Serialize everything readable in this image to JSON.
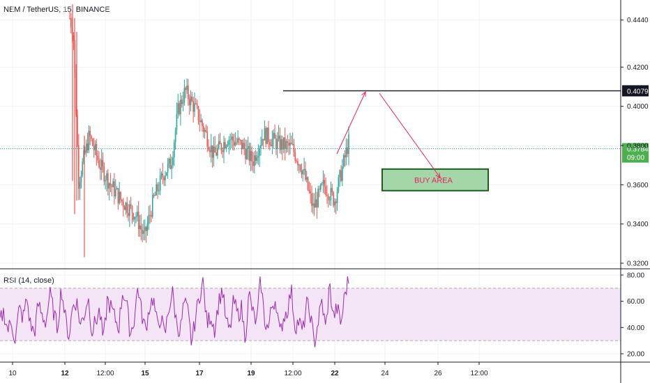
{
  "header": {
    "symbol_label": "NEM / TetherUS, 15, BINANCE"
  },
  "rsi_label": "RSI (14, close)",
  "annotation": {
    "buy_area": "BUY AREA"
  },
  "price_badges": {
    "resistance": "0.4079",
    "last": "0.3784",
    "countdown": "09:00"
  },
  "colors": {
    "up": "#26a69a",
    "down": "#ef5350",
    "rsi": "#9c27b0",
    "rsi_band": "#f3e5f5",
    "buy_fill": "#a5d6a7",
    "buy_border": "#1b5e20",
    "arrow": "#e91e63",
    "badge_dark": "#131722",
    "badge_green": "#4caf50"
  },
  "chart_data": [
    {
      "type": "candlestick",
      "title": "NEM / TetherUS, 15, BINANCE",
      "y_ticks": [
        "0.4440",
        "0.4200",
        "0.4000",
        "0.3800",
        "0.3600",
        "0.3400",
        "0.3200"
      ],
      "ylim": [
        0.318,
        0.452
      ],
      "x_ticks": [
        "10",
        "12",
        "12:00",
        "15",
        "17",
        "19",
        "12:00",
        "22",
        "24",
        "26",
        "12:00"
      ],
      "bold_x_ticks": [
        "12",
        "15",
        "17",
        "19",
        "22"
      ],
      "resistance_line": 0.4079,
      "last_price": 0.3784,
      "buy_area": {
        "label": "BUY AREA",
        "low": 0.357,
        "high": 0.368
      },
      "close_path": [
        {
          "x": 0,
          "y": 0.0
        },
        {
          "x": 0.03,
          "y": 0.0
        },
        {
          "x": 0.12,
          "y": 0.0
        },
        {
          "x": 0.2,
          "y": 0.0
        },
        {
          "x": 0.215,
          "y": 0.445
        },
        {
          "x": 0.225,
          "y": 0.438
        },
        {
          "x": 0.24,
          "y": 0.362
        },
        {
          "x": 0.27,
          "y": 0.385
        },
        {
          "x": 0.3,
          "y": 0.37
        },
        {
          "x": 0.33,
          "y": 0.36
        },
        {
          "x": 0.36,
          "y": 0.352
        },
        {
          "x": 0.4,
          "y": 0.345
        },
        {
          "x": 0.425,
          "y": 0.333
        },
        {
          "x": 0.45,
          "y": 0.352
        },
        {
          "x": 0.48,
          "y": 0.366
        },
        {
          "x": 0.5,
          "y": 0.371
        },
        {
          "x": 0.52,
          "y": 0.398
        },
        {
          "x": 0.54,
          "y": 0.408
        },
        {
          "x": 0.57,
          "y": 0.398
        },
        {
          "x": 0.6,
          "y": 0.385
        },
        {
          "x": 0.62,
          "y": 0.375
        },
        {
          "x": 0.66,
          "y": 0.384
        },
        {
          "x": 0.7,
          "y": 0.38
        },
        {
          "x": 0.73,
          "y": 0.372
        },
        {
          "x": 0.76,
          "y": 0.386
        },
        {
          "x": 0.8,
          "y": 0.381
        },
        {
          "x": 0.84,
          "y": 0.379
        },
        {
          "x": 0.87,
          "y": 0.368
        },
        {
          "x": 0.9,
          "y": 0.348
        },
        {
          "x": 0.93,
          "y": 0.36
        },
        {
          "x": 0.96,
          "y": 0.352
        },
        {
          "x": 1.0,
          "y": 0.382
        }
      ]
    },
    {
      "type": "line",
      "title": "RSI (14, close)",
      "y_ticks": [
        "80.00",
        "60.00",
        "40.00",
        "20.00"
      ],
      "ylim": [
        15,
        82
      ],
      "bands": [
        70,
        30
      ],
      "values": [
        45,
        52,
        38,
        44,
        30,
        55,
        47,
        62,
        41,
        36,
        58,
        49,
        44,
        66,
        52,
        39,
        71,
        48,
        33,
        57,
        60,
        42,
        50,
        64,
        37,
        45,
        53,
        29,
        61,
        55,
        47,
        40,
        68,
        59,
        35,
        46,
        72,
        50,
        38,
        56,
        63,
        41,
        48,
        33,
        54,
        67,
        45,
        36,
        59,
        52,
        28,
        47,
        64,
        75,
        42,
        50,
        39,
        58,
        70,
        44,
        37,
        61,
        49,
        55,
        32,
        66,
        51,
        43,
        78,
        46,
        39,
        57,
        62,
        34,
        48,
        53,
        69,
        41,
        45,
        36,
        58,
        50,
        27,
        44,
        60,
        38,
        73,
        48,
        55,
        42,
        66,
        77
      ]
    }
  ]
}
